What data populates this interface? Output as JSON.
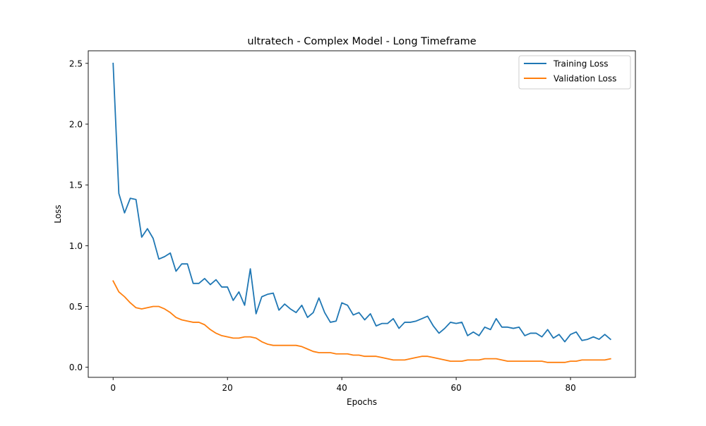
{
  "chart_data": {
    "type": "line",
    "title": "ultratech - Complex Model - Long Timeframe",
    "xlabel": "Epochs",
    "ylabel": "Loss",
    "xlim": [
      -4.35,
      91.35
    ],
    "ylim": [
      -0.0829,
      2.6034
    ],
    "xticks": [
      0,
      20,
      40,
      60,
      80
    ],
    "yticks": [
      0.0,
      0.5,
      1.0,
      1.5,
      2.0,
      2.5
    ],
    "xtick_labels": [
      "0",
      "20",
      "40",
      "60",
      "80"
    ],
    "ytick_labels": [
      "0.0",
      "0.5",
      "1.0",
      "1.5",
      "2.0",
      "2.5"
    ],
    "grid": false,
    "legend_position": "upper right",
    "x": [
      0,
      1,
      2,
      3,
      4,
      5,
      6,
      7,
      8,
      9,
      10,
      11,
      12,
      13,
      14,
      15,
      16,
      17,
      18,
      19,
      20,
      21,
      22,
      23,
      24,
      25,
      26,
      27,
      28,
      29,
      30,
      31,
      32,
      33,
      34,
      35,
      36,
      37,
      38,
      39,
      40,
      41,
      42,
      43,
      44,
      45,
      46,
      47,
      48,
      49,
      50,
      51,
      52,
      53,
      54,
      55,
      56,
      57,
      58,
      59,
      60,
      61,
      62,
      63,
      64,
      65,
      66,
      67,
      68,
      69,
      70,
      71,
      72,
      73,
      74,
      75,
      76,
      77,
      78,
      79,
      80,
      81,
      82,
      83,
      84,
      85,
      86,
      87
    ],
    "series": [
      {
        "name": "Training Loss",
        "color": "#1f77b4",
        "values": [
          2.5,
          1.43,
          1.27,
          1.39,
          1.38,
          1.07,
          1.14,
          1.06,
          0.89,
          0.91,
          0.94,
          0.79,
          0.85,
          0.85,
          0.69,
          0.69,
          0.73,
          0.68,
          0.72,
          0.66,
          0.66,
          0.55,
          0.62,
          0.51,
          0.81,
          0.44,
          0.58,
          0.6,
          0.61,
          0.47,
          0.52,
          0.48,
          0.45,
          0.51,
          0.41,
          0.45,
          0.57,
          0.45,
          0.37,
          0.38,
          0.53,
          0.51,
          0.43,
          0.45,
          0.39,
          0.44,
          0.34,
          0.36,
          0.36,
          0.4,
          0.32,
          0.37,
          0.37,
          0.38,
          0.4,
          0.42,
          0.34,
          0.28,
          0.32,
          0.37,
          0.36,
          0.37,
          0.26,
          0.29,
          0.26,
          0.33,
          0.31,
          0.4,
          0.33,
          0.33,
          0.32,
          0.33,
          0.26,
          0.28,
          0.28,
          0.25,
          0.31,
          0.24,
          0.27,
          0.21,
          0.27,
          0.29,
          0.22,
          0.23,
          0.25,
          0.23,
          0.27,
          0.23
        ]
      },
      {
        "name": "Validation Loss",
        "color": "#ff7f0e",
        "values": [
          0.71,
          0.62,
          0.58,
          0.53,
          0.49,
          0.48,
          0.49,
          0.5,
          0.5,
          0.48,
          0.45,
          0.41,
          0.39,
          0.38,
          0.37,
          0.37,
          0.35,
          0.31,
          0.28,
          0.26,
          0.25,
          0.24,
          0.24,
          0.25,
          0.25,
          0.24,
          0.21,
          0.19,
          0.18,
          0.18,
          0.18,
          0.18,
          0.18,
          0.17,
          0.15,
          0.13,
          0.12,
          0.12,
          0.12,
          0.11,
          0.11,
          0.11,
          0.1,
          0.1,
          0.09,
          0.09,
          0.09,
          0.08,
          0.07,
          0.06,
          0.06,
          0.06,
          0.07,
          0.08,
          0.09,
          0.09,
          0.08,
          0.07,
          0.06,
          0.05,
          0.05,
          0.05,
          0.06,
          0.06,
          0.06,
          0.07,
          0.07,
          0.07,
          0.06,
          0.05,
          0.05,
          0.05,
          0.05,
          0.05,
          0.05,
          0.05,
          0.04,
          0.04,
          0.04,
          0.04,
          0.05,
          0.05,
          0.06,
          0.06,
          0.06,
          0.06,
          0.06,
          0.07
        ]
      }
    ]
  }
}
